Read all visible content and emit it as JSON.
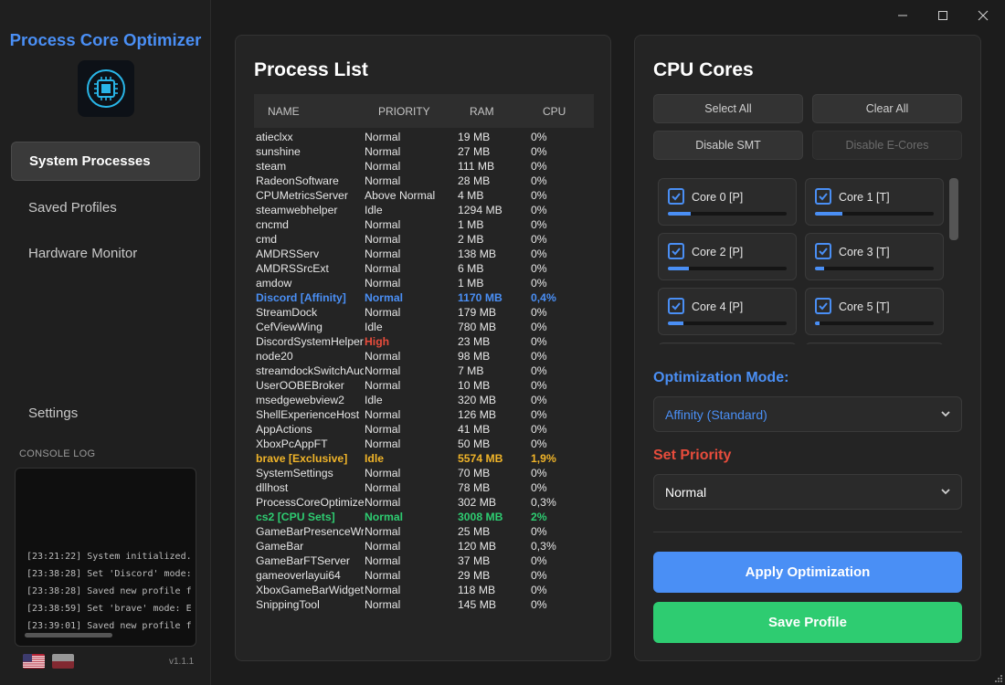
{
  "app": {
    "title": "Process Core Optimizer",
    "version": "v1.1.1"
  },
  "sidebar": {
    "nav": [
      {
        "label": "System Processes",
        "active": true
      },
      {
        "label": "Saved Profiles",
        "active": false
      },
      {
        "label": "Hardware Monitor",
        "active": false
      }
    ],
    "settings_label": "Settings",
    "console_label": "CONSOLE LOG",
    "console_lines": [
      "[23:21:22] System initialized.",
      "[23:38:28] Set 'Discord' mode: A",
      "[23:38:28] Saved new profile f",
      "[23:38:59] Set 'brave' mode: E",
      "[23:39:01] Saved new profile f"
    ],
    "languages": [
      "en-us-flag",
      "pl-flag"
    ]
  },
  "process_panel": {
    "title": "Process List",
    "columns": [
      "NAME",
      "PRIORITY",
      "RAM",
      "CPU"
    ],
    "rows": [
      {
        "name": "atieclxx",
        "priority": "Normal",
        "ram": "19 MB",
        "cpu": "0%",
        "kind": "normal"
      },
      {
        "name": "sunshine",
        "priority": "Normal",
        "ram": "27 MB",
        "cpu": "0%",
        "kind": "normal"
      },
      {
        "name": "steam",
        "priority": "Normal",
        "ram": "111 MB",
        "cpu": "0%",
        "kind": "normal"
      },
      {
        "name": "RadeonSoftware",
        "priority": "Normal",
        "ram": "28 MB",
        "cpu": "0%",
        "kind": "normal"
      },
      {
        "name": "CPUMetricsServer",
        "priority": "Above Normal",
        "ram": "4 MB",
        "cpu": "0%",
        "kind": "normal"
      },
      {
        "name": "steamwebhelper",
        "priority": "Idle",
        "ram": "1294 MB",
        "cpu": "0%",
        "kind": "normal"
      },
      {
        "name": "cncmd",
        "priority": "Normal",
        "ram": "1 MB",
        "cpu": "0%",
        "kind": "normal"
      },
      {
        "name": "cmd",
        "priority": "Normal",
        "ram": "2 MB",
        "cpu": "0%",
        "kind": "normal"
      },
      {
        "name": "AMDRSServ",
        "priority": "Normal",
        "ram": "138 MB",
        "cpu": "0%",
        "kind": "normal"
      },
      {
        "name": "AMDRSSrcExt",
        "priority": "Normal",
        "ram": "6 MB",
        "cpu": "0%",
        "kind": "normal"
      },
      {
        "name": "amdow",
        "priority": "Normal",
        "ram": "1 MB",
        "cpu": "0%",
        "kind": "normal"
      },
      {
        "name": "Discord [Affinity]",
        "priority": "Normal",
        "ram": "1170 MB",
        "cpu": "0,4%",
        "kind": "disc"
      },
      {
        "name": "StreamDock",
        "priority": "Normal",
        "ram": "179 MB",
        "cpu": "0%",
        "kind": "normal"
      },
      {
        "name": "CefViewWing",
        "priority": "Idle",
        "ram": "780 MB",
        "cpu": "0%",
        "kind": "normal"
      },
      {
        "name": "DiscordSystemHelper",
        "priority": "High",
        "ram": "23 MB",
        "cpu": "0%",
        "kind": "high"
      },
      {
        "name": "node20",
        "priority": "Normal",
        "ram": "98 MB",
        "cpu": "0%",
        "kind": "normal"
      },
      {
        "name": "streamdockSwitchAud",
        "priority": "Normal",
        "ram": "7 MB",
        "cpu": "0%",
        "kind": "normal"
      },
      {
        "name": "UserOOBEBroker",
        "priority": "Normal",
        "ram": "10 MB",
        "cpu": "0%",
        "kind": "normal"
      },
      {
        "name": "msedgewebview2",
        "priority": "Idle",
        "ram": "320 MB",
        "cpu": "0%",
        "kind": "normal"
      },
      {
        "name": "ShellExperienceHost",
        "priority": "Normal",
        "ram": "126 MB",
        "cpu": "0%",
        "kind": "normal"
      },
      {
        "name": "AppActions",
        "priority": "Normal",
        "ram": "41 MB",
        "cpu": "0%",
        "kind": "normal"
      },
      {
        "name": "XboxPcAppFT",
        "priority": "Normal",
        "ram": "50 MB",
        "cpu": "0%",
        "kind": "normal"
      },
      {
        "name": "brave [Exclusive]",
        "priority": "Idle",
        "ram": "5574 MB",
        "cpu": "1,9%",
        "kind": "brave"
      },
      {
        "name": "SystemSettings",
        "priority": "Normal",
        "ram": "70 MB",
        "cpu": "0%",
        "kind": "normal"
      },
      {
        "name": "dllhost",
        "priority": "Normal",
        "ram": "78 MB",
        "cpu": "0%",
        "kind": "normal"
      },
      {
        "name": "ProcessCoreOptimizer",
        "priority": "Normal",
        "ram": "302 MB",
        "cpu": "0,3%",
        "kind": "normal"
      },
      {
        "name": "cs2 [CPU Sets]",
        "priority": "Normal",
        "ram": "3008 MB",
        "cpu": "2%",
        "kind": "cs2"
      },
      {
        "name": "GameBarPresenceWrit",
        "priority": "Normal",
        "ram": "25 MB",
        "cpu": "0%",
        "kind": "normal"
      },
      {
        "name": "GameBar",
        "priority": "Normal",
        "ram": "120 MB",
        "cpu": "0,3%",
        "kind": "normal"
      },
      {
        "name": "GameBarFTServer",
        "priority": "Normal",
        "ram": "37 MB",
        "cpu": "0%",
        "kind": "normal"
      },
      {
        "name": "gameoverlayui64",
        "priority": "Normal",
        "ram": "29 MB",
        "cpu": "0%",
        "kind": "normal"
      },
      {
        "name": "XboxGameBarWidgets",
        "priority": "Normal",
        "ram": "118 MB",
        "cpu": "0%",
        "kind": "normal"
      },
      {
        "name": "SnippingTool",
        "priority": "Normal",
        "ram": "145 MB",
        "cpu": "0%",
        "kind": "normal"
      }
    ]
  },
  "cpu_panel": {
    "title": "CPU Cores",
    "buttons": {
      "select_all": "Select All",
      "clear_all": "Clear All",
      "disable_smt": "Disable SMT",
      "disable_ecores": "Disable E-Cores"
    },
    "cores": [
      {
        "label": "Core 0 [P]",
        "checked": true,
        "load": 0.19
      },
      {
        "label": "Core 1 [T]",
        "checked": true,
        "load": 0.23
      },
      {
        "label": "Core 2 [P]",
        "checked": true,
        "load": 0.18
      },
      {
        "label": "Core 3 [T]",
        "checked": true,
        "load": 0.08
      },
      {
        "label": "Core 4 [P]",
        "checked": true,
        "load": 0.13
      },
      {
        "label": "Core 5 [T]",
        "checked": true,
        "load": 0.04
      }
    ],
    "optimization_mode_label": "Optimization Mode:",
    "optimization_mode_value": "Affinity (Standard)",
    "set_priority_label": "Set Priority",
    "set_priority_value": "Normal",
    "apply_label": "Apply Optimization",
    "save_label": "Save Profile"
  },
  "colors": {
    "accent": "#4a8ff5",
    "danger": "#e74c3c",
    "success": "#2ecc71",
    "warning": "#f0b429"
  }
}
